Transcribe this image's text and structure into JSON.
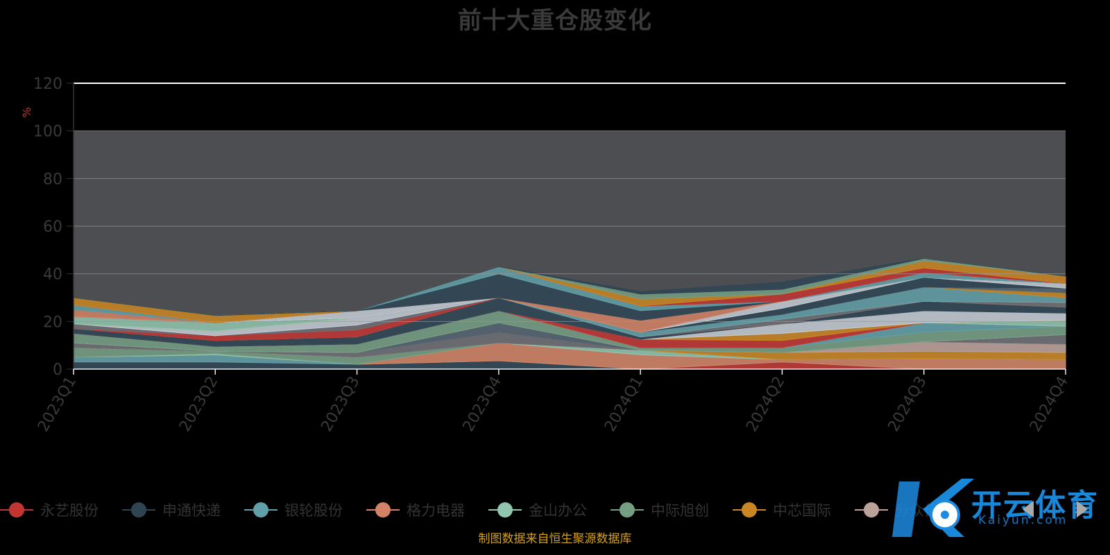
{
  "chart_data": {
    "type": "area",
    "stacked": true,
    "title": "前十大重仓股变化",
    "ylabel": "%",
    "ylim": [
      0,
      120
    ],
    "yticks": [
      "0",
      "20",
      "40",
      "60",
      "80",
      "100",
      "120"
    ],
    "categories": [
      "2023Q1",
      "2023Q2",
      "2023Q3",
      "2023Q4",
      "2024Q1",
      "2024Q2",
      "2024Q3",
      "2024Q4"
    ],
    "grid": true,
    "legend_position": "bottom",
    "series": [
      {
        "name": "永艺股份",
        "color": "#c23531",
        "values": [
          0,
          0,
          0,
          0,
          0,
          3,
          0,
          0
        ]
      },
      {
        "name": "申通快递",
        "color": "#2f4554",
        "values": [
          3,
          3,
          2,
          3.5,
          0,
          0,
          0,
          0
        ]
      },
      {
        "name": "银轮股份",
        "color": "#61a0a8",
        "values": [
          2,
          3,
          0,
          0,
          0,
          0,
          0,
          0
        ]
      },
      {
        "name": "格力电器",
        "color": "#d48265",
        "values": [
          0,
          0,
          0,
          7.5,
          6,
          1,
          4.5,
          4
        ]
      },
      {
        "name": "金山办公",
        "color": "#91c7ae",
        "values": [
          0,
          0.5,
          0,
          0,
          2,
          0,
          0,
          0
        ]
      },
      {
        "name": "中际旭创",
        "color": "#749f83",
        "values": [
          4,
          1,
          3,
          0,
          0,
          0,
          0,
          0
        ]
      },
      {
        "name": "中芯国际",
        "color": "#ca8622",
        "values": [
          0,
          0,
          0,
          0,
          0,
          3,
          3,
          3
        ]
      },
      {
        "name": "分众传媒",
        "color": "#bda29a",
        "values": [
          0,
          0,
          0,
          0,
          0,
          0,
          4,
          3.5
        ]
      },
      {
        "name": "",
        "color": "#6e7074",
        "values": [
          2,
          0,
          2,
          4.5,
          0,
          0,
          0,
          4
        ]
      },
      {
        "name": "",
        "color": "#546570",
        "values": [
          0,
          0,
          0,
          4,
          0,
          0,
          0,
          0
        ]
      },
      {
        "name": "",
        "color": "#c4ccd3",
        "values": [
          0,
          0,
          0,
          0,
          0,
          0,
          0,
          0
        ]
      },
      {
        "name": "",
        "color": "#749f83",
        "values": [
          4,
          2,
          3.5,
          5,
          1,
          2,
          4,
          3.5
        ]
      },
      {
        "name": "",
        "color": "#61a0a8",
        "values": [
          0,
          0,
          0,
          0,
          0,
          0,
          4,
          0
        ]
      },
      {
        "name": "",
        "color": "#d48265",
        "values": [
          0,
          0,
          0,
          0,
          0,
          0,
          0,
          0
        ]
      },
      {
        "name": "",
        "color": "#91c7ae",
        "values": [
          0,
          0,
          0,
          0,
          0,
          0,
          0,
          2.5
        ]
      },
      {
        "name": "",
        "color": "#c23531",
        "values": [
          0,
          0,
          0,
          0,
          3.5,
          3,
          0,
          0
        ]
      },
      {
        "name": "",
        "color": "#ca8622",
        "values": [
          0,
          0,
          0,
          0,
          0,
          3,
          0,
          0
        ]
      },
      {
        "name": "",
        "color": "#c4ccd3",
        "values": [
          0,
          0,
          0,
          0,
          0,
          4,
          5,
          3
        ]
      },
      {
        "name": "",
        "color": "#2f4554",
        "values": [
          2,
          2.5,
          3,
          5.5,
          1,
          0,
          4,
          2.5
        ]
      },
      {
        "name": "",
        "color": "#bda29a",
        "values": [
          0,
          0,
          0,
          0,
          0,
          0,
          0,
          0
        ]
      },
      {
        "name": "",
        "color": "#c23531",
        "values": [
          0,
          2,
          3,
          0,
          0,
          0,
          0,
          0
        ]
      },
      {
        "name": "",
        "color": "#6e7074",
        "values": [
          2,
          0,
          2,
          0,
          0,
          2,
          0,
          2
        ]
      },
      {
        "name": "",
        "color": "#c4ccd3",
        "values": [
          0,
          2,
          3,
          0,
          0,
          0,
          0,
          0
        ]
      },
      {
        "name": "",
        "color": "#61a0a8",
        "values": [
          0,
          0,
          0,
          0,
          2,
          2,
          6,
          2
        ]
      },
      {
        "name": "",
        "color": "#ca8622",
        "values": [
          0,
          0,
          0,
          0,
          0,
          0,
          0,
          2
        ]
      },
      {
        "name": "",
        "color": "#91c7ae",
        "values": [
          3,
          3.5,
          0,
          0,
          0,
          0,
          0,
          0
        ]
      },
      {
        "name": "",
        "color": "#546570",
        "values": [
          0,
          0,
          0,
          0,
          0,
          0,
          0,
          2
        ]
      },
      {
        "name": "",
        "color": "#2f4554",
        "values": [
          0,
          0,
          0,
          0,
          0,
          2.5,
          4,
          0
        ]
      },
      {
        "name": "",
        "color": "#c4ccd3",
        "values": [
          0,
          0,
          3,
          0,
          0,
          3,
          0,
          2
        ]
      },
      {
        "name": "",
        "color": "#d48265",
        "values": [
          3,
          0,
          0,
          0,
          5,
          0,
          0,
          0
        ]
      },
      {
        "name": "",
        "color": "#2f4554",
        "values": [
          0,
          0,
          0,
          10,
          4,
          0,
          0,
          0
        ]
      },
      {
        "name": "",
        "color": "#61a0a8",
        "values": [
          2,
          0,
          0,
          3,
          2,
          0,
          2,
          0
        ]
      },
      {
        "name": "",
        "color": "#c23531",
        "values": [
          0,
          0,
          0,
          0,
          0,
          3,
          2,
          0
        ]
      },
      {
        "name": "",
        "color": "#ca8622",
        "values": [
          3,
          3,
          0,
          0,
          3,
          0,
          3,
          3
        ]
      },
      {
        "name": "",
        "color": "#749f83",
        "values": [
          0,
          0,
          0,
          0,
          2,
          2,
          1,
          0
        ]
      },
      {
        "name": "",
        "color": "#2f4554",
        "values": [
          0,
          0,
          0,
          0,
          1,
          3,
          0,
          0
        ]
      }
    ]
  },
  "legend": {
    "items": [
      {
        "label": "永艺股份",
        "color": "#c23531"
      },
      {
        "label": "申通快递",
        "color": "#2f4554"
      },
      {
        "label": "银轮股份",
        "color": "#61a0a8"
      },
      {
        "label": "格力电器",
        "color": "#d48265"
      },
      {
        "label": "金山办公",
        "color": "#91c7ae"
      },
      {
        "label": "中际旭创",
        "color": "#749f83"
      },
      {
        "label": "中芯国际",
        "color": "#ca8622"
      },
      {
        "label": "分众传媒",
        "color": "#bda29a"
      }
    ]
  },
  "watermark": {
    "text": "开云体育",
    "sub": "Kaiyun.com"
  },
  "footer": {
    "source_note": "制图数据来自恒生聚源数据库"
  },
  "colors": {
    "background": "#000000",
    "plot_band": "#4d4e52",
    "gridline": "#999999",
    "axis": "#333333",
    "source_note": "#d4a017",
    "ylabel": "#c23531"
  }
}
